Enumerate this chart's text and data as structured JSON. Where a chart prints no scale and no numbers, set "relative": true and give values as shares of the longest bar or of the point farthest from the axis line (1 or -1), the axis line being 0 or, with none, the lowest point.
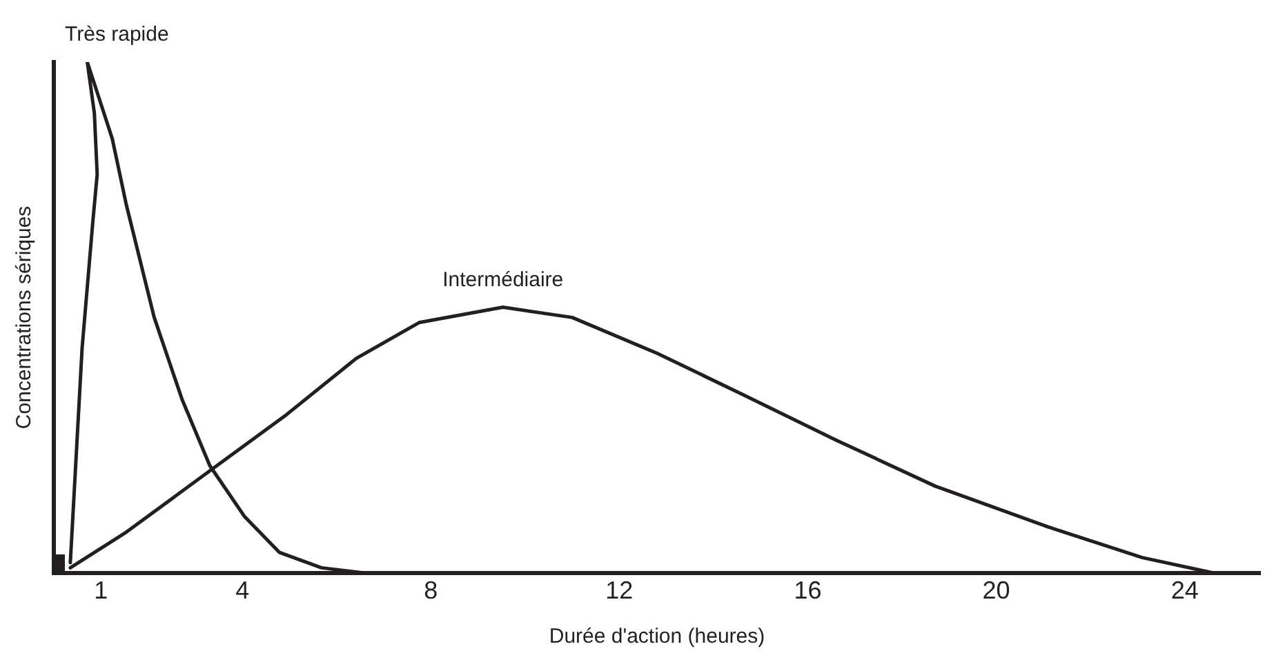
{
  "chart_data": {
    "type": "line",
    "relative": true,
    "xlabel": "Durée d'action (heures)",
    "ylabel": "Concentrations sériques",
    "xlim": [
      0,
      25.6
    ],
    "xticks": [
      1,
      4,
      8,
      12,
      16,
      20,
      24
    ],
    "grid": false,
    "legend": false,
    "marker": "none",
    "line_style": "solid",
    "series": [
      {
        "name": "Très rapide",
        "color": "#231f20",
        "x": [
          0.35,
          0.6,
          0.83,
          0.92,
          0.86,
          0.71,
          1.24,
          1.54,
          2.13,
          2.72,
          3.31,
          4.05,
          4.79,
          5.68,
          6.57
        ],
        "values": [
          0.02,
          0.44,
          0.69,
          0.78,
          0.9,
          1.0,
          0.85,
          0.72,
          0.5,
          0.34,
          0.21,
          0.11,
          0.04,
          0.01,
          0
        ]
      },
      {
        "name": "Intermédiaire",
        "color": "#231f20",
        "x": [
          0.35,
          1.54,
          3.46,
          4.94,
          6.42,
          7.75,
          9.53,
          11.0,
          12.8,
          14.6,
          16.6,
          18.7,
          21.1,
          23.1,
          24.6,
          25.5
        ],
        "values": [
          0.01,
          0.08,
          0.21,
          0.31,
          0.42,
          0.49,
          0.52,
          0.5,
          0.43,
          0.35,
          0.26,
          0.17,
          0.09,
          0.03,
          0,
          0
        ]
      }
    ]
  }
}
